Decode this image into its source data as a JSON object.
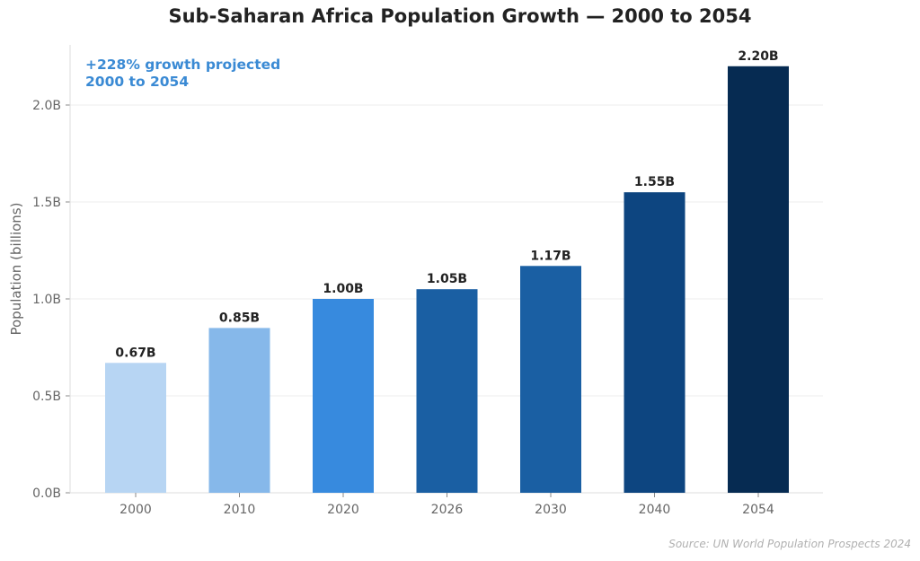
{
  "chart_data": {
    "type": "bar",
    "title": "Sub-Saharan Africa Population Growth — 2000 to 2054",
    "ylabel": "Population (billions)",
    "xlabel": "",
    "categories": [
      "2000",
      "2010",
      "2020",
      "2026",
      "2030",
      "2040",
      "2054"
    ],
    "values": [
      0.67,
      0.85,
      1.0,
      1.05,
      1.17,
      1.55,
      2.2
    ],
    "data_labels": [
      "0.67B",
      "0.85B",
      "1.00B",
      "1.05B",
      "1.17B",
      "1.55B",
      "2.20B"
    ],
    "colors": [
      "#b7d5f3",
      "#86b8ea",
      "#378ade",
      "#1a5fa3",
      "#1a5fa3",
      "#0d4580",
      "#062b52"
    ],
    "ylim": [
      0,
      2.31
    ],
    "yticks": [
      0,
      0.5,
      1.0,
      1.5,
      2.0
    ],
    "ytick_labels": [
      "0.0B",
      "0.5B",
      "1.0B",
      "1.5B",
      "2.0B"
    ],
    "grid": "horizontal",
    "annotation": [
      "+228% growth projected",
      "2000 to 2054"
    ],
    "source": "Source: UN World Population Prospects 2024"
  }
}
